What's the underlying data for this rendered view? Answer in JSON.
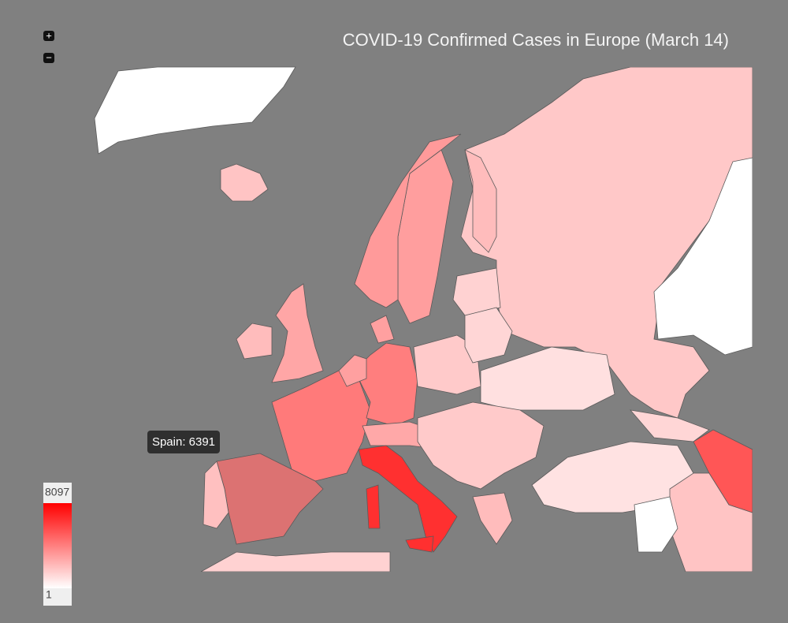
{
  "header": {
    "title": "COVID-19 Confirmed Cases in Europe (March 14)"
  },
  "zoom": {
    "in": "+",
    "out": "−"
  },
  "tooltip": "Spain: 6391",
  "legend": {
    "max": 8097,
    "min": 1
  }
}
